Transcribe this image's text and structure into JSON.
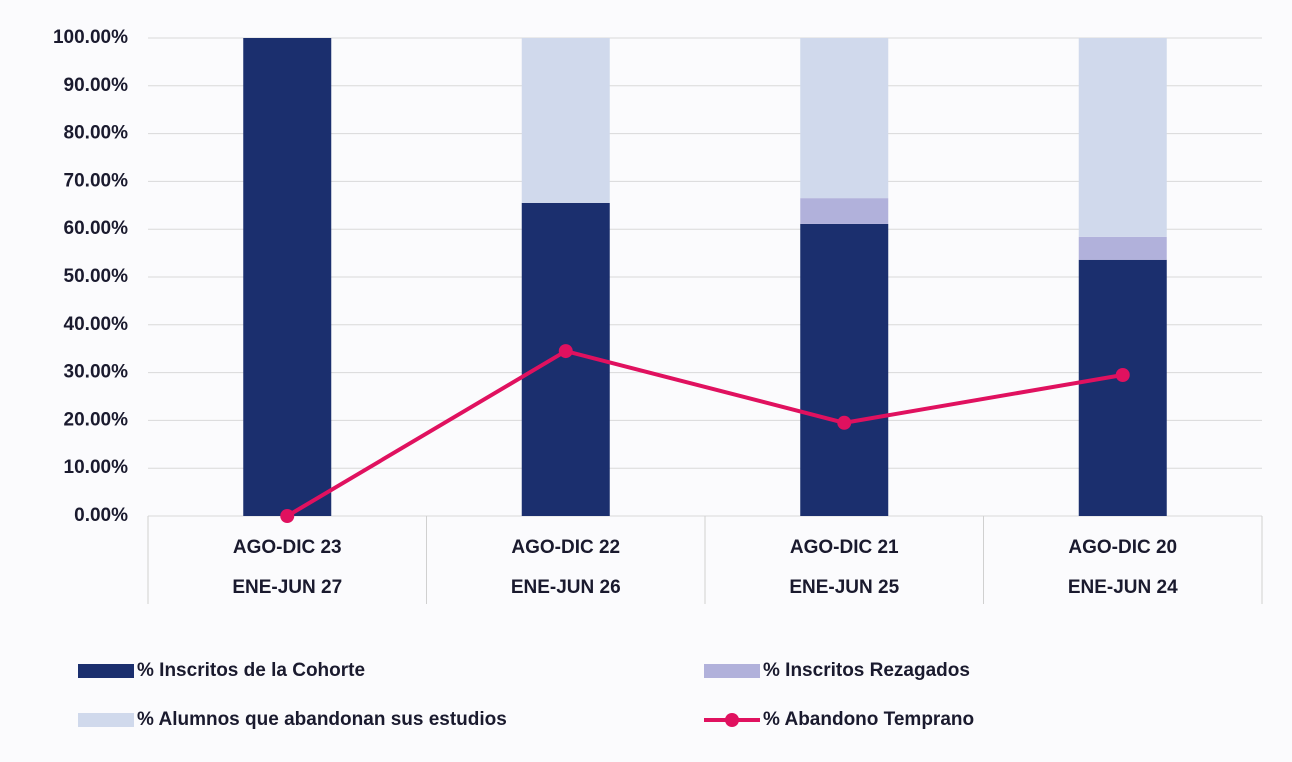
{
  "chart_data": {
    "type": "bar",
    "stacked": true,
    "categories": [
      [
        "AGO-DIC 23",
        "ENE-JUN 27"
      ],
      [
        "AGO-DIC 22",
        "ENE-JUN 26"
      ],
      [
        "AGO-DIC 21",
        "ENE-JUN 25"
      ],
      [
        "AGO-DIC 20",
        "ENE-JUN 24"
      ]
    ],
    "series": [
      {
        "name": "% Inscritos de la Cohorte",
        "type": "bar",
        "color": "#1b2f6e",
        "values": [
          100,
          65.5,
          61.1,
          53.6
        ]
      },
      {
        "name": "% Inscritos Rezagados",
        "type": "bar",
        "color": "#b1b1db",
        "values": [
          0,
          0,
          5.4,
          4.8
        ]
      },
      {
        "name": "% Alumnos que abandonan sus estudios",
        "type": "bar",
        "color": "#d0d9ec",
        "values": [
          0,
          34.5,
          33.5,
          41.6
        ]
      },
      {
        "name": "% Abandono Temprano",
        "type": "line",
        "color": "#e0115f",
        "values": [
          0,
          34.5,
          19.5,
          29.5
        ]
      }
    ],
    "ylim": [
      0,
      100
    ],
    "yticks": [
      {
        "value": 0,
        "label": "0.00%"
      },
      {
        "value": 10,
        "label": "10.00%"
      },
      {
        "value": 20,
        "label": "20.00%"
      },
      {
        "value": 30,
        "label": "30.00%"
      },
      {
        "value": 40,
        "label": "40.00%"
      },
      {
        "value": 50,
        "label": "50.00%"
      },
      {
        "value": 60,
        "label": "60.00%"
      },
      {
        "value": 70,
        "label": "70.00%"
      },
      {
        "value": 80,
        "label": "80.00%"
      },
      {
        "value": 90,
        "label": "90.00%"
      },
      {
        "value": 100,
        "label": "100.00%"
      }
    ],
    "grid": true
  }
}
